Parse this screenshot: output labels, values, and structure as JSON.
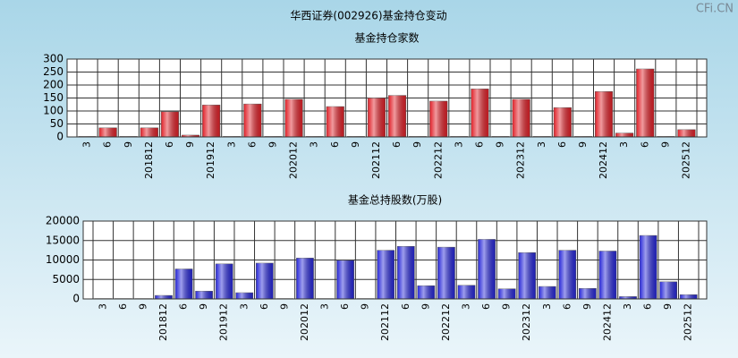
{
  "title": "华西证券(002926)基金持仓变动",
  "watermark": "CFi.CN",
  "chart_data": [
    {
      "type": "bar",
      "title": "基金持仓家数",
      "color": "#e02028",
      "categories": [
        "3",
        "6",
        "9",
        "201812",
        "6",
        "9",
        "201912",
        "3",
        "6",
        "9",
        "202012",
        "3",
        "6",
        "9",
        "202112",
        "6",
        "9",
        "202212",
        "3",
        "6",
        "9",
        "202312",
        "3",
        "6",
        "9",
        "202412",
        "3",
        "6",
        "9",
        "202512"
      ],
      "values": [
        2,
        35,
        2,
        35,
        97,
        7,
        123,
        2,
        127,
        2,
        145,
        2,
        117,
        2,
        150,
        160,
        2,
        138,
        2,
        185,
        2,
        145,
        2,
        113,
        2,
        175,
        15,
        262,
        2,
        28
      ],
      "ylim": [
        0,
        300
      ],
      "yticks": [
        0,
        50,
        100,
        150,
        200,
        250,
        300
      ],
      "grid": true
    },
    {
      "type": "bar",
      "title": "基金总持股数(万股)",
      "color": "#2828d8",
      "categories": [
        "3",
        "6",
        "9",
        "201812",
        "6",
        "9",
        "201912",
        "3",
        "6",
        "9",
        "202012",
        "3",
        "6",
        "9",
        "202112",
        "6",
        "9",
        "202212",
        "3",
        "6",
        "9",
        "202312",
        "3",
        "6",
        "9",
        "202412",
        "3",
        "6",
        "9",
        "202512"
      ],
      "values": [
        100,
        100,
        100,
        900,
        7700,
        2000,
        9000,
        1600,
        9200,
        100,
        10500,
        100,
        9900,
        100,
        12500,
        13500,
        3400,
        13300,
        3500,
        15300,
        2600,
        11900,
        3200,
        12500,
        2700,
        12300,
        600,
        16300,
        4400,
        1100
      ],
      "ylim": [
        0,
        20000
      ],
      "yticks": [
        0,
        5000,
        10000,
        15000,
        20000
      ],
      "grid": true
    }
  ]
}
